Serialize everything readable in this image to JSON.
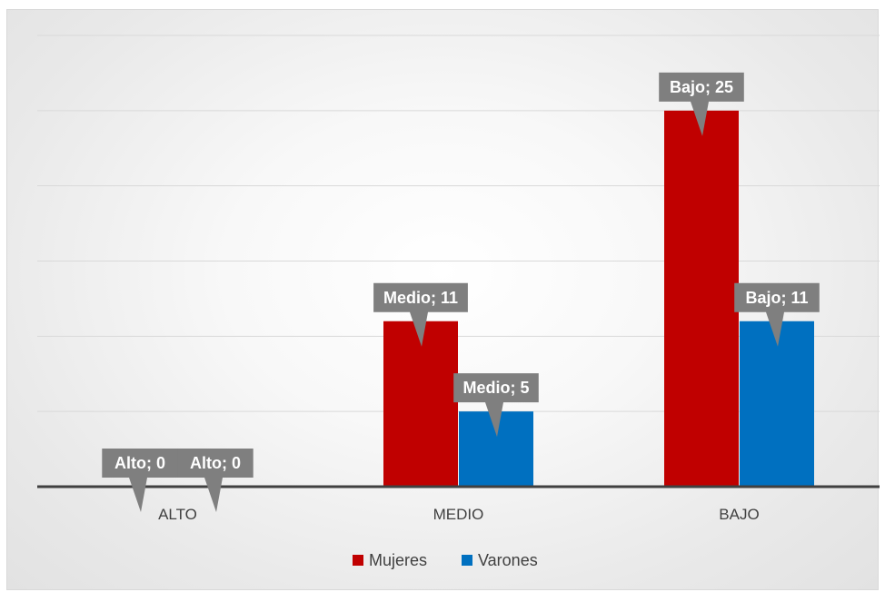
{
  "chart_data": {
    "type": "bar",
    "categories": [
      "ALTO",
      "MEDIO",
      "BAJO"
    ],
    "series": [
      {
        "name": "Mujeres",
        "color": "#c00000",
        "values": [
          0,
          11,
          25
        ],
        "data_labels": [
          "Alto; 0",
          "Medio; 11",
          "Bajo; 25"
        ]
      },
      {
        "name": "Varones",
        "color": "#0070c0",
        "values": [
          0,
          5,
          11
        ],
        "data_labels": [
          "Alto; 0",
          "Medio; 5",
          "Bajo; 11"
        ]
      }
    ],
    "ylim": [
      0,
      30
    ],
    "y_gridline_step": 5,
    "y_axis_labels_visible": false,
    "grid": true,
    "legend_position": "bottom",
    "data_label_style": "callout"
  }
}
